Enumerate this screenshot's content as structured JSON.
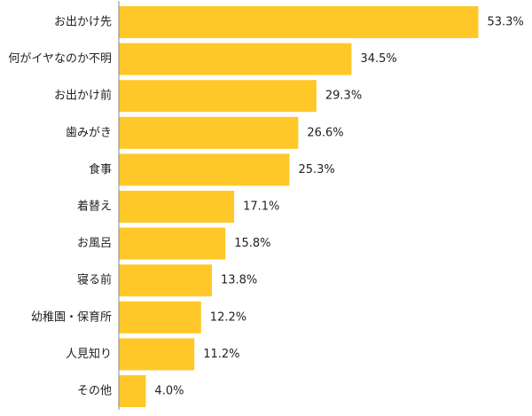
{
  "chart_data": {
    "type": "bar",
    "orientation": "horizontal",
    "categories": [
      "お出かけ先",
      "何がイヤなのか不明",
      "お出かけ前",
      "歯みがき",
      "食事",
      "着替え",
      "お風呂",
      "寝る前",
      "幼稚園・保育所",
      "人見知り",
      "その他"
    ],
    "values": [
      53.3,
      34.5,
      29.3,
      26.6,
      25.3,
      17.1,
      15.8,
      13.8,
      12.2,
      11.2,
      4.0
    ],
    "value_labels": [
      "53.3%",
      "34.5%",
      "29.3%",
      "26.6%",
      "25.3%",
      "17.1%",
      "15.8%",
      "13.8%",
      "12.2%",
      "11.2%",
      "4.0%"
    ],
    "xlim": [
      0,
      56
    ],
    "grid": false,
    "bar_color": "#FFC828",
    "axis_color": "#888888"
  }
}
